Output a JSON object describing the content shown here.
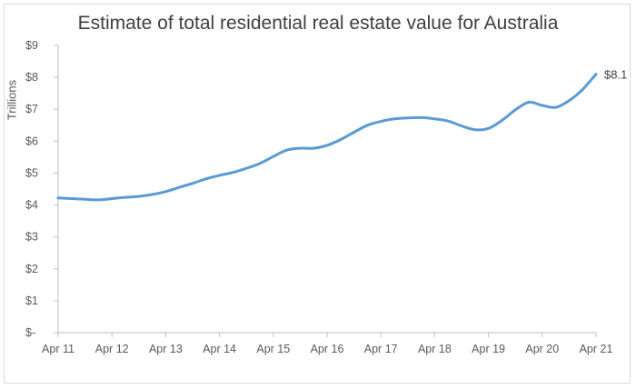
{
  "chart_data": {
    "type": "line",
    "title": "Estimate of total residential real estate value for Australia",
    "ylabel": "Trillions",
    "xlabel": "",
    "ylim": [
      0,
      9
    ],
    "yticks": [
      "$-",
      "$1",
      "$2",
      "$3",
      "$4",
      "$5",
      "$6",
      "$7",
      "$8",
      "$9"
    ],
    "xticks": [
      "Apr 11",
      "Apr 12",
      "Apr 13",
      "Apr 14",
      "Apr 15",
      "Apr 16",
      "Apr 17",
      "Apr 18",
      "Apr 19",
      "Apr 20",
      "Apr 21"
    ],
    "end_label": "$8.1",
    "grid": false,
    "line_color": "#5b9bd5",
    "x": [
      2011.25,
      2011.5,
      2011.75,
      2012.0,
      2012.25,
      2012.5,
      2012.75,
      2013.0,
      2013.25,
      2013.5,
      2013.75,
      2014.0,
      2014.25,
      2014.5,
      2014.75,
      2015.0,
      2015.25,
      2015.5,
      2015.75,
      2016.0,
      2016.25,
      2016.5,
      2016.75,
      2017.0,
      2017.25,
      2017.5,
      2017.75,
      2018.0,
      2018.25,
      2018.5,
      2018.75,
      2019.0,
      2019.25,
      2019.5,
      2019.75,
      2020.0,
      2020.25,
      2020.5,
      2020.75,
      2021.0,
      2021.25
    ],
    "values": [
      4.22,
      4.2,
      4.18,
      4.16,
      4.2,
      4.24,
      4.27,
      4.33,
      4.42,
      4.55,
      4.68,
      4.82,
      4.93,
      5.02,
      5.15,
      5.3,
      5.52,
      5.72,
      5.78,
      5.78,
      5.87,
      6.05,
      6.28,
      6.5,
      6.62,
      6.7,
      6.73,
      6.74,
      6.7,
      6.63,
      6.48,
      6.36,
      6.4,
      6.65,
      6.98,
      7.22,
      7.12,
      7.06,
      7.27,
      7.62,
      8.1
    ]
  }
}
